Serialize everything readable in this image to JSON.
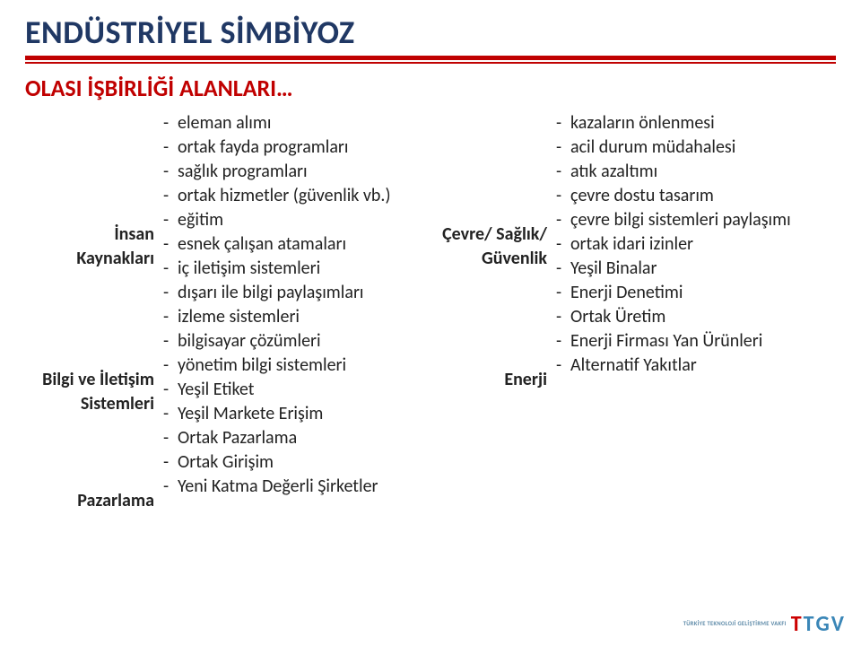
{
  "colors": {
    "title": "#203864",
    "rule": "#c00000",
    "subtitle": "#c00000",
    "body": "#222222",
    "logo_t": "#cc0000",
    "logo_v": "#3a86b7"
  },
  "title": "ENDÜSTRİYEL SİMBİYOZ",
  "subtitle": "OLASI İŞBİRLİĞİ ALANLARI…",
  "left": {
    "groups": [
      {
        "label_lines": [
          "İnsan",
          "Kaynakları"
        ],
        "items": [
          "eleman alımı",
          "ortak fayda programları",
          "sağlık programları",
          "ortak hizmetler (güvenlik vb.)",
          "eğitim",
          "esnek çalışan atamaları"
        ]
      },
      {
        "label_lines": [
          "Bilgi ve İletişim",
          "Sistemleri"
        ],
        "items": [
          "iç iletişim sistemleri",
          "dışarı ile bilgi paylaşımları",
          "izleme sistemleri",
          "bilgisayar çözümleri",
          "yönetim bilgi sistemleri"
        ]
      },
      {
        "label_lines": [
          "Pazarlama"
        ],
        "items": [
          "Yeşil Etiket",
          "Yeşil Markete Erişim",
          "Ortak Pazarlama",
          "Ortak Girişim",
          "Yeni Katma Değerli Şirketler"
        ]
      }
    ]
  },
  "right": {
    "groups": [
      {
        "label_lines": [
          "Çevre/ Sağlık/",
          "Güvenlik"
        ],
        "items": [
          "kazaların önlenmesi",
          "acil durum müdahalesi",
          "atık azaltımı",
          "çevre dostu tasarım",
          "çevre bilgi sistemleri paylaşımı",
          "ortak idari izinler"
        ]
      },
      {
        "label_lines": [
          "Enerji"
        ],
        "items": [
          "Yeşil Binalar",
          "Enerji Denetimi",
          "Ortak Üretim",
          "Enerji Firması Yan Ürünleri",
          "Alternatif Yakıtlar"
        ]
      }
    ]
  },
  "logo": {
    "line1": "TÜRKİYE TEKNOLOJİ GELİŞTİRME VAKFI",
    "mark": [
      "T",
      "T",
      "G",
      "V"
    ]
  }
}
